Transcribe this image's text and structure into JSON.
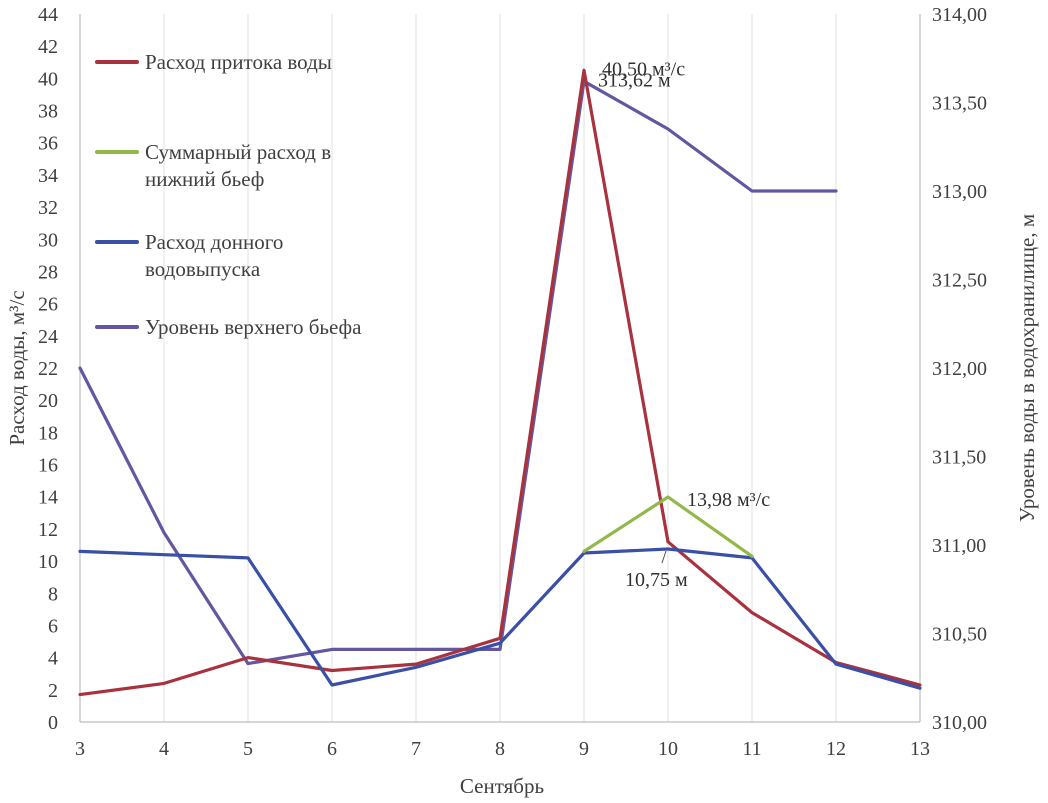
{
  "chart_data": {
    "type": "line",
    "title": "",
    "xlabel": "Сентябрь",
    "ylabel": "Расход воды, м³/с",
    "y2label": "Уровень воды в водохранилище, м",
    "x": [
      3,
      4,
      5,
      6,
      7,
      8,
      9,
      10,
      11,
      12,
      13
    ],
    "x_tick_labels": [
      "3",
      "4",
      "5",
      "6",
      "7",
      "8",
      "9",
      "10",
      "11",
      "12",
      "13"
    ],
    "xlim": [
      3,
      13
    ],
    "ylim": [
      0,
      44
    ],
    "y_ticks": [
      0,
      2,
      4,
      6,
      8,
      10,
      12,
      14,
      16,
      18,
      20,
      22,
      24,
      26,
      28,
      30,
      32,
      34,
      36,
      38,
      40,
      42,
      44
    ],
    "y2lim": [
      310.0,
      314.0
    ],
    "y2_tick_labels": [
      "310,00",
      "310,50",
      "311,00",
      "311,50",
      "312,00",
      "312,50",
      "313,00",
      "313,50",
      "314,00"
    ],
    "y2_ticks": [
      310.0,
      310.5,
      311.0,
      311.5,
      312.0,
      312.5,
      313.0,
      313.5,
      314.0
    ],
    "series": [
      {
        "name": "Расход притока воды",
        "axis": "left",
        "color": "#a8323e",
        "x": [
          3,
          4,
          5,
          6,
          7,
          8,
          9,
          10,
          11,
          12,
          13
        ],
        "values": [
          1.7,
          2.4,
          4.0,
          3.2,
          3.6,
          5.2,
          40.5,
          11.2,
          6.8,
          3.7,
          2.3
        ]
      },
      {
        "name": "Суммарный расход в нижний бьеф",
        "axis": "left",
        "color": "#92b84a",
        "x": [
          9,
          10,
          11
        ],
        "values": [
          10.6,
          13.98,
          10.3
        ]
      },
      {
        "name": "Расход донного водовыпуска",
        "axis": "left",
        "color": "#3a4fa6",
        "x": [
          3,
          4,
          5,
          6,
          7,
          8,
          9,
          10,
          11,
          12,
          13
        ],
        "values": [
          10.6,
          10.4,
          10.2,
          2.3,
          3.4,
          4.9,
          10.5,
          10.75,
          10.2,
          3.6,
          2.1
        ]
      },
      {
        "name": "Уровень верхнего бьефа",
        "axis": "right",
        "color": "#6456a0",
        "x": [
          3,
          4,
          5,
          6,
          7,
          8,
          9,
          10,
          11,
          12
        ],
        "values": [
          312.0,
          311.07,
          310.33,
          310.41,
          310.41,
          310.41,
          313.62,
          313.35,
          313.0,
          313.0
        ]
      }
    ],
    "legend": {
      "position": "top-left",
      "entries": [
        "Расход притока воды",
        "Суммарный расход в нижний бьеф",
        "Расход донного водовыпуска",
        "Уровень верхнего бьефа"
      ]
    },
    "annotations": [
      {
        "text": "40,50 м³/с",
        "series": 0,
        "x": 9
      },
      {
        "text": "313,62 м",
        "series": 3,
        "x": 9
      },
      {
        "text": "13,98 м³/с",
        "series": 1,
        "x": 10
      },
      {
        "text": "10,75 м",
        "series": 2,
        "x": 10
      }
    ],
    "grid": true
  }
}
